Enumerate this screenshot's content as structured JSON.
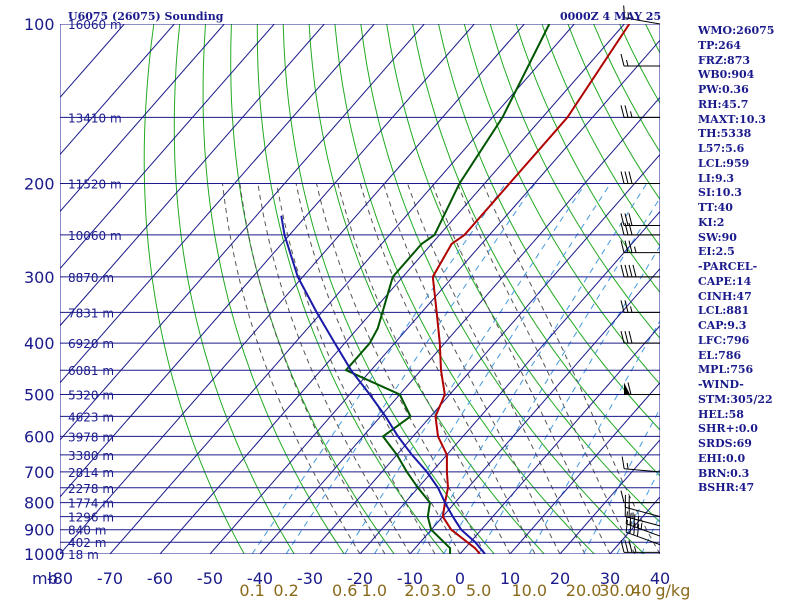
{
  "header": {
    "station": "U6075 (26075) Sounding",
    "time": "0000Z  4 MAY 25"
  },
  "indices": [
    "WMO:26075",
    "TP:264",
    "FRZ:873",
    "WB0:904",
    "PW:0.36",
    "RH:45.7",
    "MAXT:10.3",
    "TH:5338",
    "L57:5.6",
    "LCL:959",
    "LI:9.3",
    "SI:10.3",
    "TT:40",
    "KI:2",
    "SW:90",
    "EI:2.5",
    "-PARCEL-",
    "CAPE:14",
    "CINH:47",
    "LCL:881",
    "CAP:9.3",
    "LFC:796",
    "EL:786",
    "MPL:756",
    "-WIND-",
    "STM:305/22",
    "HEL:58",
    "SHR+:0.0",
    "SRDS:69",
    "EHI:0.0",
    "BRN:0.3",
    "BSHR:47"
  ],
  "colors": {
    "isobar": "#1a1a8c",
    "isotherm": "#1a1a8c",
    "dry_adiabat": "#22aa22",
    "moist_adiabat": "#555555",
    "mixing_ratio": "#4499dd",
    "temperature": "#b00000",
    "dewpoint": "#005500",
    "parcel": "#1a1aa8",
    "wind": "#000000"
  },
  "chart_data": {
    "type": "skew-t",
    "pressure_axis_unit": "mb",
    "pressure_ticks": [
      100,
      200,
      300,
      400,
      500,
      600,
      700,
      800,
      900,
      1000
    ],
    "temperature_ticks": [
      -80,
      -70,
      -60,
      -50,
      -40,
      -30,
      -20,
      -10,
      0,
      10,
      20,
      30,
      40
    ],
    "xlim": [
      -80,
      40
    ],
    "ylim": [
      1000,
      100
    ],
    "log_pressure": true,
    "mixing_ratio_labels": [
      "0.1",
      "0.2",
      "0.6",
      "1.0",
      "2.0",
      "3.0",
      "5.0",
      "10.0",
      "20.0",
      "30.0",
      "40"
    ],
    "mixing_ratio_unit": "g/kg",
    "height_labels": [
      {
        "p": 100,
        "text": "16060 m"
      },
      {
        "p": 150,
        "text": "13410 m"
      },
      {
        "p": 200,
        "text": "11520 m"
      },
      {
        "p": 250,
        "text": "10060 m"
      },
      {
        "p": 300,
        "text": "8870 m"
      },
      {
        "p": 350,
        "text": "7831 m"
      },
      {
        "p": 400,
        "text": "6920 m"
      },
      {
        "p": 450,
        "text": "6081 m"
      },
      {
        "p": 500,
        "text": "5320 m"
      },
      {
        "p": 550,
        "text": "4623 m"
      },
      {
        "p": 600,
        "text": "3978 m"
      },
      {
        "p": 650,
        "text": "3380 m"
      },
      {
        "p": 700,
        "text": "2814 m"
      },
      {
        "p": 750,
        "text": "2278 m"
      },
      {
        "p": 800,
        "text": "1774 m"
      },
      {
        "p": 850,
        "text": "1296 m"
      },
      {
        "p": 900,
        "text": "840 m"
      },
      {
        "p": 950,
        "text": "402 m"
      },
      {
        "p": 1000,
        "text": "18 m"
      }
    ],
    "series": [
      {
        "key": "temperature",
        "points": [
          [
            1000,
            4
          ],
          [
            975,
            2
          ],
          [
            900,
            -6
          ],
          [
            850,
            -10
          ],
          [
            800,
            -12
          ],
          [
            750,
            -14
          ],
          [
            700,
            -17
          ],
          [
            650,
            -20
          ],
          [
            600,
            -25
          ],
          [
            550,
            -29
          ],
          [
            500,
            -31
          ],
          [
            450,
            -36
          ],
          [
            400,
            -41
          ],
          [
            350,
            -47
          ],
          [
            300,
            -54
          ],
          [
            260,
            -56
          ],
          [
            250,
            -55
          ],
          [
            200,
            -55
          ],
          [
            150,
            -55
          ],
          [
            100,
            -59
          ]
        ]
      },
      {
        "key": "dewpoint",
        "points": [
          [
            1000,
            -2
          ],
          [
            975,
            -3
          ],
          [
            900,
            -10
          ],
          [
            850,
            -13
          ],
          [
            800,
            -15
          ],
          [
            750,
            -20
          ],
          [
            700,
            -25
          ],
          [
            650,
            -30
          ],
          [
            600,
            -36
          ],
          [
            550,
            -34
          ],
          [
            500,
            -40
          ],
          [
            450,
            -55
          ],
          [
            400,
            -55
          ],
          [
            375,
            -56
          ],
          [
            300,
            -62
          ],
          [
            260,
            -62
          ],
          [
            250,
            -61
          ],
          [
            200,
            -65
          ],
          [
            150,
            -68
          ],
          [
            100,
            -75
          ]
        ]
      },
      {
        "key": "parcel",
        "points": [
          [
            1000,
            5
          ],
          [
            950,
            1
          ],
          [
            900,
            -4
          ],
          [
            850,
            -8
          ],
          [
            800,
            -12
          ],
          [
            750,
            -16
          ],
          [
            700,
            -21
          ],
          [
            650,
            -27
          ],
          [
            600,
            -33
          ],
          [
            550,
            -39
          ],
          [
            500,
            -46
          ],
          [
            450,
            -54
          ],
          [
            400,
            -62
          ],
          [
            350,
            -71
          ],
          [
            300,
            -81
          ],
          [
            250,
            -91
          ],
          [
            230,
            -95
          ]
        ]
      }
    ],
    "wind_barbs": [
      {
        "p": 993,
        "dir": 270,
        "speed": 35
      },
      {
        "p": 960,
        "dir": 290,
        "speed": 40
      },
      {
        "p": 925,
        "dir": 290,
        "speed": 45
      },
      {
        "p": 885,
        "dir": 285,
        "speed": 25
      },
      {
        "p": 850,
        "dir": 285,
        "speed": 20
      },
      {
        "p": 800,
        "dir": 270,
        "speed": 10
      },
      {
        "p": 700,
        "dir": 275,
        "speed": 15
      },
      {
        "p": 500,
        "dir": 270,
        "speed": 60
      },
      {
        "p": 400,
        "dir": 270,
        "speed": 30
      },
      {
        "p": 350,
        "dir": 270,
        "speed": 25
      },
      {
        "p": 300,
        "dir": 270,
        "speed": 40
      },
      {
        "p": 270,
        "dir": 270,
        "speed": 35
      },
      {
        "p": 250,
        "dir": 270,
        "speed": 30
      },
      {
        "p": 240,
        "dir": 270,
        "speed": 30
      },
      {
        "p": 200,
        "dir": 270,
        "speed": 30
      },
      {
        "p": 150,
        "dir": 270,
        "speed": 25
      },
      {
        "p": 120,
        "dir": 270,
        "speed": 15
      },
      {
        "p": 100,
        "dir": 280,
        "speed": 15
      }
    ]
  }
}
